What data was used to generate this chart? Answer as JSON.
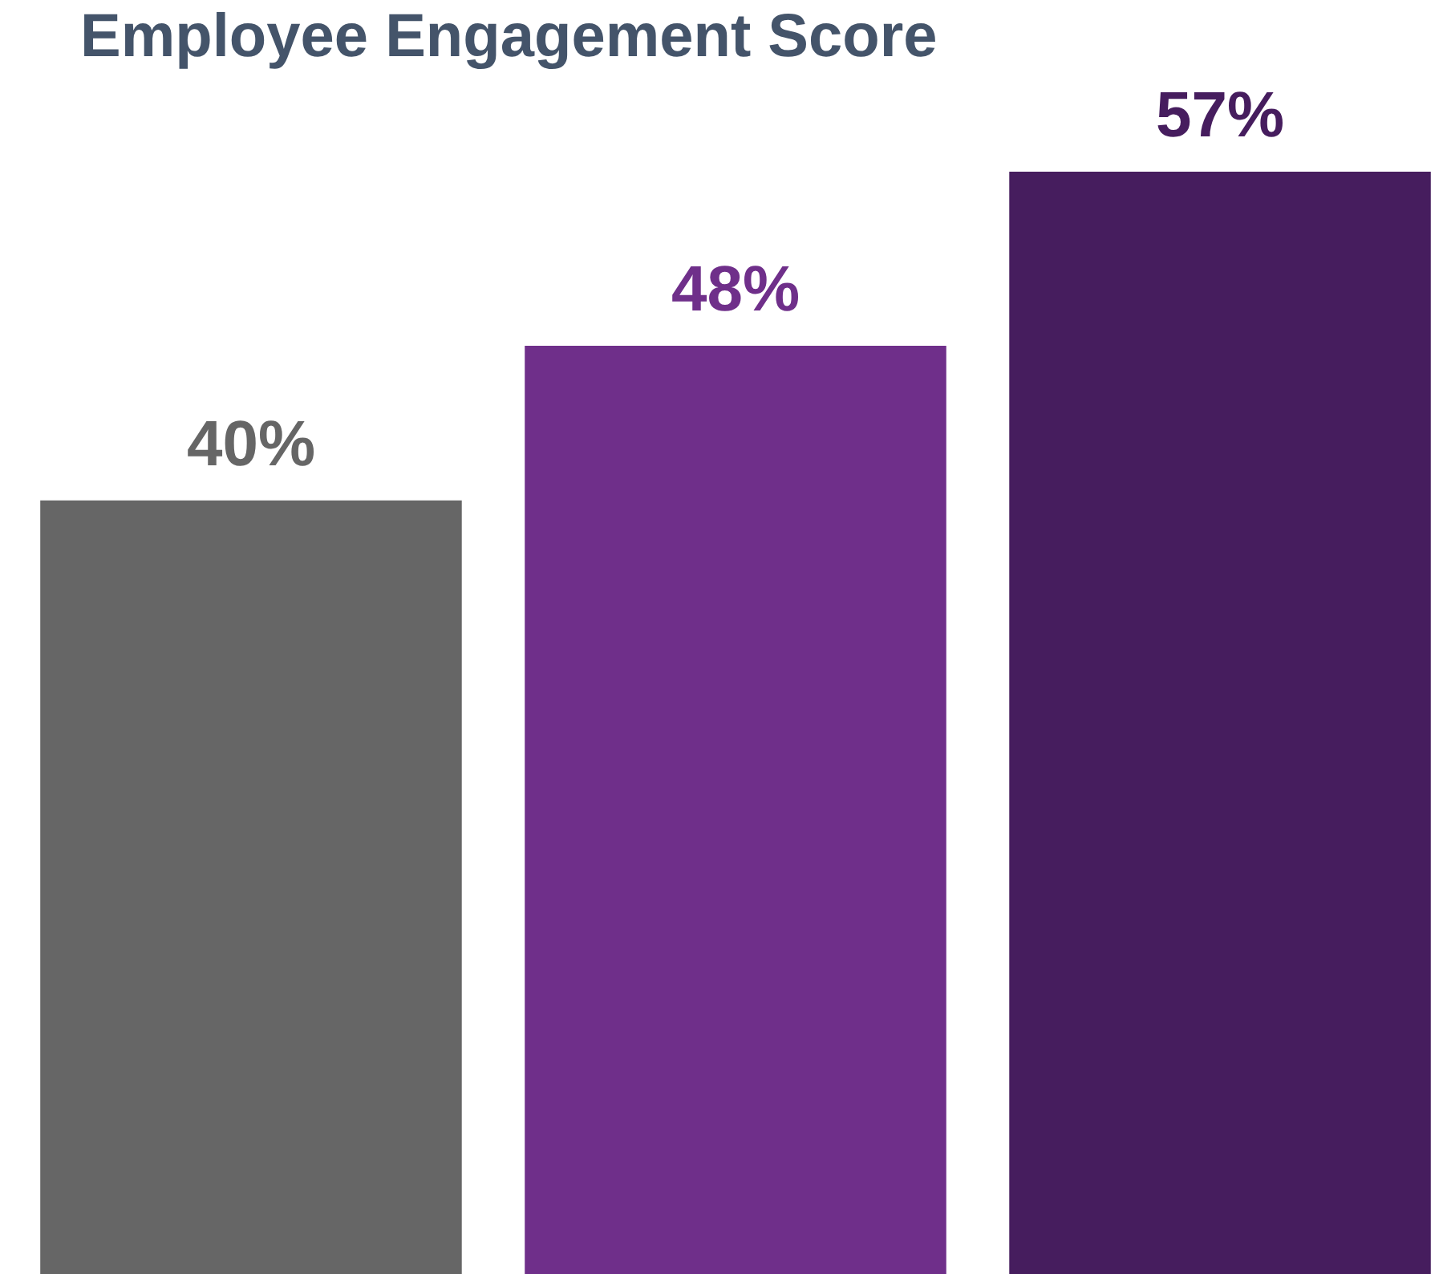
{
  "chart_data": {
    "type": "bar",
    "title": "Employee Engagement Score",
    "categories": [
      null,
      null,
      null
    ],
    "values": [
      40,
      48,
      57
    ],
    "colors": [
      "#666666",
      "#6f2f8a",
      "#461d5e"
    ],
    "value_labels": [
      "40%",
      "48%",
      "57%"
    ]
  }
}
